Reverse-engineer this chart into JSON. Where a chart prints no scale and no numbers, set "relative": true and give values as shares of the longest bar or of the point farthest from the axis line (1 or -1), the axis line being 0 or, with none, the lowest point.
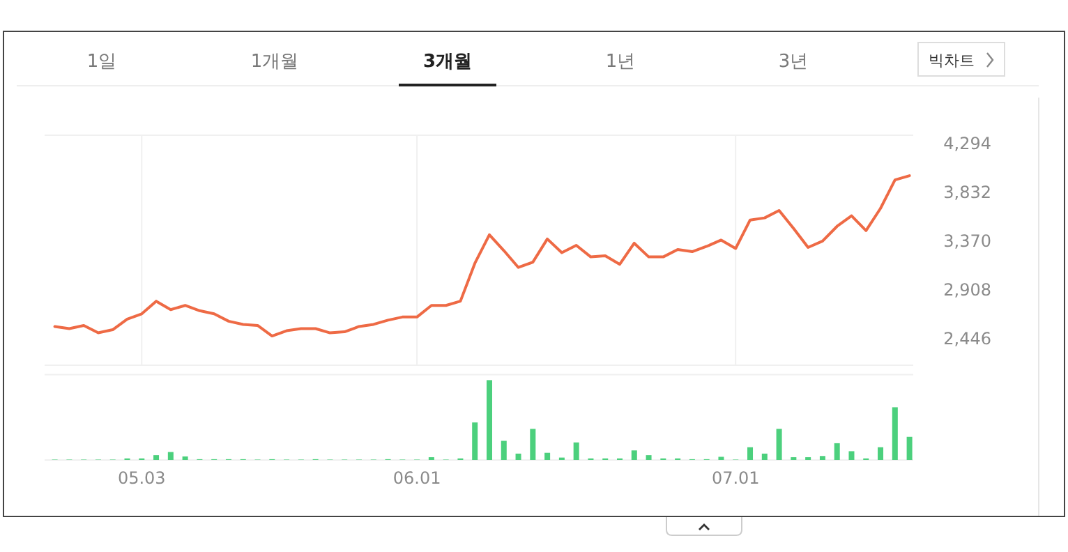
{
  "chart_data": [
    {
      "type": "line",
      "annotations": [
        "1일",
        "1개월",
        "3개월",
        "1년",
        "3년",
        "빅차트"
      ],
      "categories": [
        null,
        null,
        null,
        null,
        null,
        null,
        "05.03",
        null,
        null,
        null,
        null,
        null,
        null,
        null,
        null,
        null,
        null,
        null,
        null,
        null,
        null,
        null,
        null,
        null,
        null,
        "06.01",
        null,
        null,
        null,
        null,
        null,
        null,
        null,
        null,
        null,
        null,
        null,
        null,
        null,
        null,
        null,
        null,
        null,
        null,
        null,
        null,
        null,
        "07.01",
        null,
        null,
        null,
        null,
        null,
        null,
        null,
        null,
        null,
        null,
        null,
        null
      ],
      "series": [
        {
          "color": "#ee6a45",
          "values": [
            2560,
            2540,
            2570,
            2500,
            2530,
            2630,
            2680,
            2800,
            2720,
            2760,
            2710,
            2680,
            2610,
            2580,
            2570,
            2470,
            2520,
            2540,
            2540,
            2500,
            2510,
            2560,
            2580,
            2620,
            2650,
            2650,
            2760,
            2760,
            2800,
            3160,
            3430,
            3280,
            3120,
            3170,
            3390,
            3260,
            3330,
            3220,
            3230,
            3150,
            3350,
            3220,
            3220,
            3290,
            3270,
            3320,
            3380,
            3300,
            3570,
            3590,
            3660,
            3490,
            3310,
            3370,
            3510,
            3610,
            3470,
            3680,
            3950,
            3990
          ]
        }
      ],
      "ylim": [
        2193,
        4374
      ],
      "yticks": [
        {
          "value": 2446,
          "label": "2,446"
        },
        {
          "value": 2908,
          "label": "2,908"
        },
        {
          "value": 3370,
          "label": "3,370"
        },
        {
          "value": 3832,
          "label": "3,832"
        },
        {
          "value": 4294,
          "label": "4,294"
        }
      ],
      "grid": "x",
      "tick_labels": "y",
      "marker": "none",
      "line_style": "solid"
    },
    {
      "type": "bar",
      "relative": true,
      "tick_labels": "x",
      "categories": [
        null,
        null,
        null,
        null,
        null,
        null,
        "05.03",
        null,
        null,
        null,
        null,
        null,
        null,
        null,
        null,
        null,
        null,
        null,
        null,
        null,
        null,
        null,
        null,
        null,
        null,
        "06.01",
        null,
        null,
        null,
        null,
        null,
        null,
        null,
        null,
        null,
        null,
        null,
        null,
        null,
        null,
        null,
        null,
        null,
        null,
        null,
        null,
        null,
        "07.01",
        null,
        null,
        null,
        null,
        null,
        null,
        null,
        null,
        null,
        null,
        null,
        null
      ],
      "series": [
        {
          "color": "#4cd07d",
          "values": [
            0.005,
            0.005,
            0.005,
            0.005,
            0.005,
            0.02,
            0.02,
            0.06,
            0.1,
            0.045,
            0.01,
            0.01,
            0.01,
            0.01,
            0.005,
            0.01,
            0.005,
            0.005,
            0.01,
            0.005,
            0.005,
            0.005,
            0.005,
            0.01,
            0.005,
            0.005,
            0.035,
            0.005,
            0.02,
            0.47,
            1,
            0.24,
            0.08,
            0.39,
            0.09,
            0.03,
            0.22,
            0.02,
            0.02,
            0.02,
            0.12,
            0.06,
            0.02,
            0.02,
            0.01,
            0.01,
            0.04,
            0.005,
            0.16,
            0.08,
            0.39,
            0.035,
            0.035,
            0.05,
            0.21,
            0.11,
            0.02,
            0.16,
            0.66,
            0.29
          ]
        }
      ]
    }
  ]
}
